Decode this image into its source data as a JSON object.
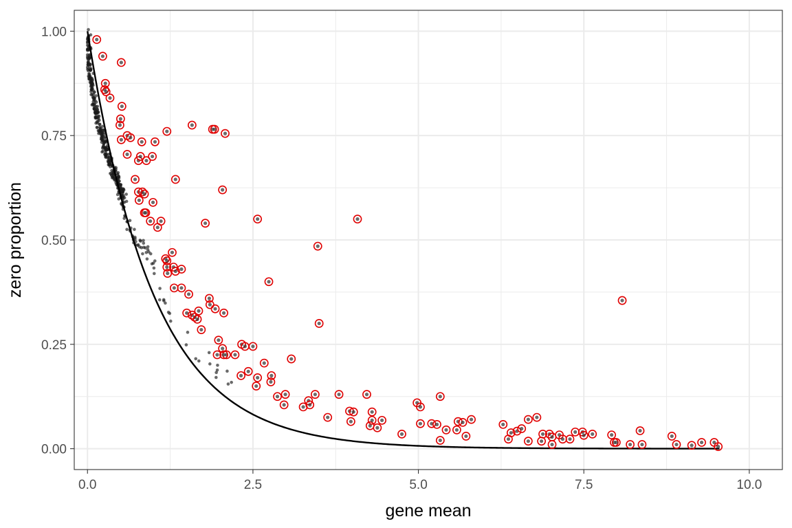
{
  "chart_data": {
    "type": "scatter",
    "title": "",
    "xlabel": "gene mean",
    "ylabel": "zero proportion",
    "xlim": [
      -0.2,
      10.5
    ],
    "ylim": [
      -0.05,
      1.05
    ],
    "x_ticks": [
      0,
      2.5,
      5,
      7.5,
      10
    ],
    "x_tick_labels": [
      "0.0",
      "2.5",
      "5.0",
      "7.5",
      "10.0"
    ],
    "y_ticks": [
      0,
      0.25,
      0.5,
      0.75,
      1
    ],
    "y_tick_labels": [
      "0.00",
      "0.25",
      "0.50",
      "0.75",
      "1.00"
    ],
    "grid": true,
    "colors": {
      "points": "#1a1a1a",
      "highlight": "#e00000",
      "curve": "#000000",
      "grid": "#ebebeb",
      "panel_border": "#333333"
    },
    "curve": {
      "formula": "exp(-x)",
      "x_range": [
        0,
        9.55
      ]
    },
    "highlighted_points": [
      [
        0.14,
        0.98
      ],
      [
        0.23,
        0.94
      ],
      [
        0.51,
        0.925
      ],
      [
        0.27,
        0.875
      ],
      [
        0.26,
        0.86
      ],
      [
        0.28,
        0.855
      ],
      [
        0.34,
        0.84
      ],
      [
        0.52,
        0.82
      ],
      [
        0.5,
        0.79
      ],
      [
        0.49,
        0.775
      ],
      [
        0.6,
        0.75
      ],
      [
        0.65,
        0.745
      ],
      [
        0.51,
        0.74
      ],
      [
        0.82,
        0.735
      ],
      [
        1.02,
        0.735
      ],
      [
        1.2,
        0.76
      ],
      [
        1.58,
        0.775
      ],
      [
        1.89,
        0.765
      ],
      [
        1.92,
        0.765
      ],
      [
        2.08,
        0.755
      ],
      [
        0.6,
        0.705
      ],
      [
        0.77,
        0.69
      ],
      [
        0.8,
        0.7
      ],
      [
        0.89,
        0.69
      ],
      [
        0.98,
        0.7
      ],
      [
        0.72,
        0.645
      ],
      [
        1.33,
        0.645
      ],
      [
        2.04,
        0.62
      ],
      [
        0.77,
        0.615
      ],
      [
        0.83,
        0.615
      ],
      [
        0.86,
        0.61
      ],
      [
        0.78,
        0.595
      ],
      [
        0.99,
        0.59
      ],
      [
        0.86,
        0.565
      ],
      [
        0.88,
        0.565
      ],
      [
        0.95,
        0.545
      ],
      [
        1.11,
        0.545
      ],
      [
        1.06,
        0.53
      ],
      [
        1.78,
        0.54
      ],
      [
        2.57,
        0.55
      ],
      [
        4.08,
        0.55
      ],
      [
        3.48,
        0.485
      ],
      [
        1.28,
        0.47
      ],
      [
        1.18,
        0.455
      ],
      [
        1.2,
        0.45
      ],
      [
        1.2,
        0.435
      ],
      [
        1.21,
        0.42
      ],
      [
        1.3,
        0.435
      ],
      [
        1.33,
        0.425
      ],
      [
        1.42,
        0.43
      ],
      [
        1.31,
        0.385
      ],
      [
        1.42,
        0.385
      ],
      [
        2.74,
        0.4
      ],
      [
        1.53,
        0.37
      ],
      [
        1.84,
        0.36
      ],
      [
        1.85,
        0.345
      ],
      [
        1.93,
        0.335
      ],
      [
        2.06,
        0.325
      ],
      [
        1.5,
        0.325
      ],
      [
        1.58,
        0.32
      ],
      [
        1.62,
        0.315
      ],
      [
        1.66,
        0.31
      ],
      [
        1.68,
        0.33
      ],
      [
        1.72,
        0.285
      ],
      [
        3.5,
        0.3
      ],
      [
        8.08,
        0.355
      ],
      [
        1.98,
        0.26
      ],
      [
        2.04,
        0.24
      ],
      [
        2.1,
        0.225
      ],
      [
        2.06,
        0.225
      ],
      [
        1.96,
        0.225
      ],
      [
        2.23,
        0.225
      ],
      [
        2.33,
        0.25
      ],
      [
        2.38,
        0.245
      ],
      [
        2.5,
        0.245
      ],
      [
        3.08,
        0.215
      ],
      [
        2.67,
        0.205
      ],
      [
        2.32,
        0.175
      ],
      [
        2.43,
        0.185
      ],
      [
        2.57,
        0.17
      ],
      [
        2.78,
        0.175
      ],
      [
        2.77,
        0.16
      ],
      [
        2.55,
        0.15
      ],
      [
        2.87,
        0.125
      ],
      [
        2.97,
        0.105
      ],
      [
        2.99,
        0.13
      ],
      [
        3.26,
        0.1
      ],
      [
        3.34,
        0.115
      ],
      [
        3.36,
        0.105
      ],
      [
        3.44,
        0.13
      ],
      [
        3.63,
        0.075
      ],
      [
        3.8,
        0.13
      ],
      [
        3.96,
        0.09
      ],
      [
        3.98,
        0.065
      ],
      [
        4.02,
        0.088
      ],
      [
        4.22,
        0.13
      ],
      [
        4.27,
        0.055
      ],
      [
        4.3,
        0.068
      ],
      [
        4.3,
        0.088
      ],
      [
        4.38,
        0.05
      ],
      [
        4.45,
        0.068
      ],
      [
        4.75,
        0.035
      ],
      [
        4.98,
        0.11
      ],
      [
        5.03,
        0.1
      ],
      [
        5.03,
        0.06
      ],
      [
        5.2,
        0.06
      ],
      [
        5.28,
        0.058
      ],
      [
        5.33,
        0.125
      ],
      [
        5.33,
        0.02
      ],
      [
        5.42,
        0.045
      ],
      [
        5.58,
        0.045
      ],
      [
        5.6,
        0.065
      ],
      [
        5.67,
        0.063
      ],
      [
        5.72,
        0.03
      ],
      [
        5.8,
        0.07
      ],
      [
        6.28,
        0.058
      ],
      [
        6.36,
        0.023
      ],
      [
        6.4,
        0.038
      ],
      [
        6.49,
        0.042
      ],
      [
        6.56,
        0.048
      ],
      [
        6.66,
        0.018
      ],
      [
        6.66,
        0.07
      ],
      [
        6.79,
        0.075
      ],
      [
        6.86,
        0.018
      ],
      [
        6.88,
        0.035
      ],
      [
        6.98,
        0.035
      ],
      [
        7.02,
        0.01
      ],
      [
        7.02,
        0.028
      ],
      [
        7.13,
        0.033
      ],
      [
        7.18,
        0.023
      ],
      [
        7.29,
        0.023
      ],
      [
        7.37,
        0.04
      ],
      [
        7.48,
        0.04
      ],
      [
        7.5,
        0.032
      ],
      [
        7.63,
        0.035
      ],
      [
        7.92,
        0.033
      ],
      [
        7.96,
        0.015
      ],
      [
        7.99,
        0.015
      ],
      [
        8.2,
        0.01
      ],
      [
        8.35,
        0.043
      ],
      [
        8.38,
        0.01
      ],
      [
        8.83,
        0.03
      ],
      [
        8.9,
        0.01
      ],
      [
        9.13,
        0.008
      ],
      [
        9.28,
        0.015
      ],
      [
        9.47,
        0.015
      ],
      [
        9.53,
        0.005
      ]
    ],
    "dark_point_clusters": [
      {
        "start": [
          0.0,
          0.995
        ],
        "end": [
          0.56,
          0.6
        ],
        "count": 260,
        "spread_y": 0.03
      },
      {
        "start": [
          0.03,
          0.98
        ],
        "end": [
          0.6,
          0.58
        ],
        "count": 120,
        "spread_y": 0.06
      },
      {
        "start": [
          0.5,
          0.62
        ],
        "end": [
          1.0,
          0.45
        ],
        "count": 40,
        "spread_y": 0.04
      },
      {
        "start": [
          1.0,
          0.45
        ],
        "end": [
          2.2,
          0.16
        ],
        "count": 25,
        "spread_y": 0.05
      }
    ]
  }
}
